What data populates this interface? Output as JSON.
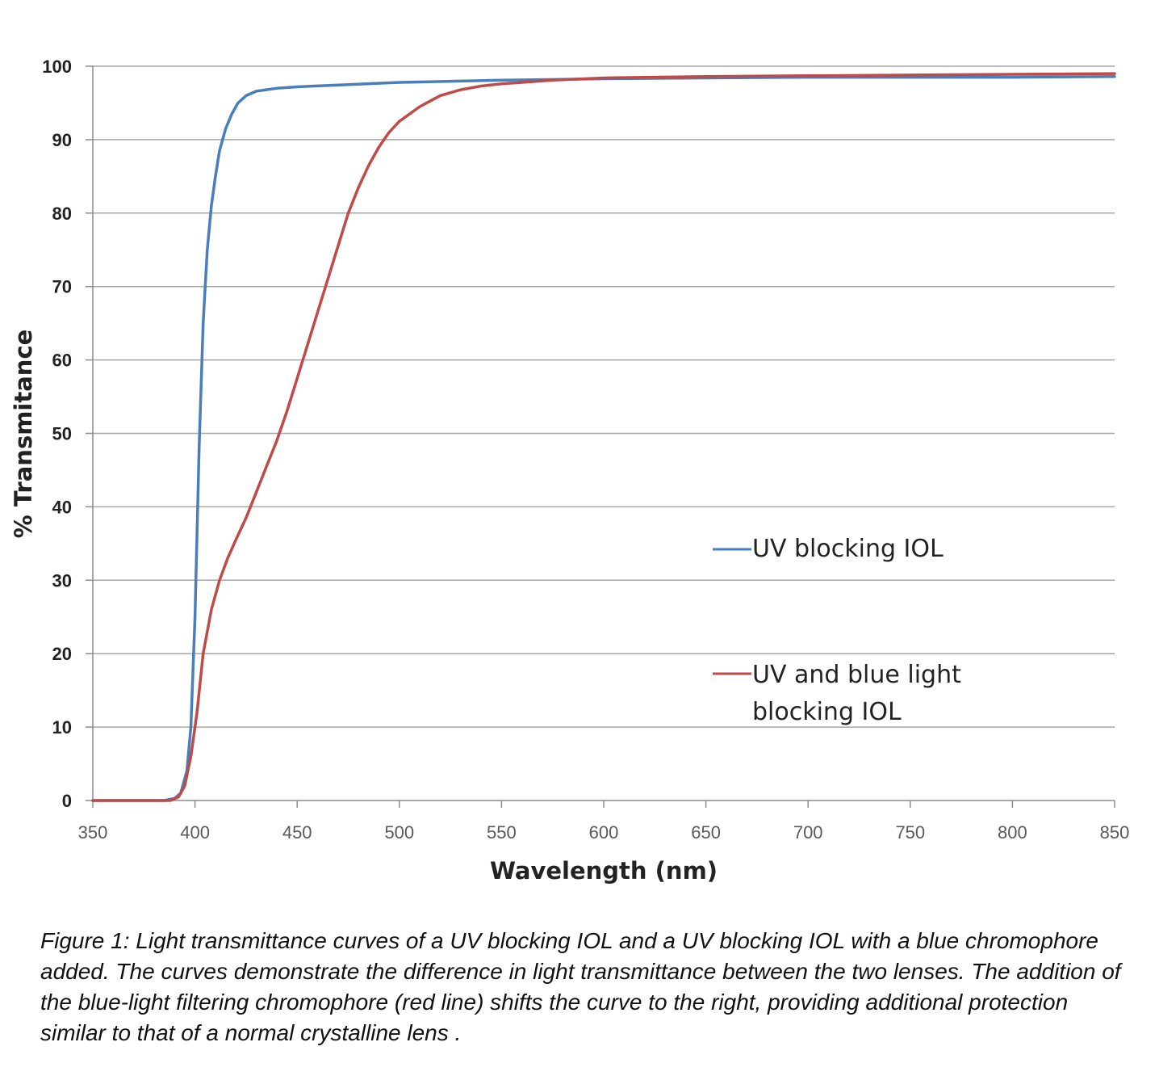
{
  "chart_data": {
    "type": "line",
    "xlabel": "Wavelength (nm)",
    "ylabel": "% Transmitance",
    "xlim": [
      350,
      850
    ],
    "ylim": [
      0,
      100
    ],
    "x_ticks": [
      "350",
      "400",
      "450",
      "500",
      "550",
      "600",
      "650",
      "700",
      "750",
      "800",
      "850"
    ],
    "y_ticks": [
      "0",
      "10",
      "20",
      "30",
      "40",
      "50",
      "60",
      "70",
      "80",
      "90",
      "100"
    ],
    "grid": "horizontal",
    "legend_position": "right, inside plot",
    "series": [
      {
        "name": "UV blocking IOL",
        "color": "#4a7ebb",
        "points": [
          [
            350,
            0
          ],
          [
            385,
            0
          ],
          [
            390,
            0.3
          ],
          [
            393,
            1
          ],
          [
            396,
            4
          ],
          [
            398,
            10
          ],
          [
            400,
            25
          ],
          [
            402,
            48
          ],
          [
            404,
            65
          ],
          [
            406,
            75
          ],
          [
            408,
            81
          ],
          [
            410,
            85
          ],
          [
            412,
            88.5
          ],
          [
            415,
            91.5
          ],
          [
            418,
            93.5
          ],
          [
            421,
            95
          ],
          [
            425,
            96
          ],
          [
            430,
            96.6
          ],
          [
            440,
            97
          ],
          [
            450,
            97.2
          ],
          [
            475,
            97.5
          ],
          [
            500,
            97.8
          ],
          [
            550,
            98.1
          ],
          [
            600,
            98.3
          ],
          [
            650,
            98.4
          ],
          [
            700,
            98.5
          ],
          [
            750,
            98.5
          ],
          [
            800,
            98.5
          ],
          [
            850,
            98.6
          ]
        ]
      },
      {
        "name": "UV and blue light blocking IOL",
        "color": "#be4b48",
        "points": [
          [
            350,
            0
          ],
          [
            388,
            0
          ],
          [
            392,
            0.5
          ],
          [
            395,
            2
          ],
          [
            398,
            6
          ],
          [
            401,
            12
          ],
          [
            404,
            20
          ],
          [
            408,
            26
          ],
          [
            412,
            30
          ],
          [
            416,
            33
          ],
          [
            420,
            35.5
          ],
          [
            425,
            38.5
          ],
          [
            430,
            42
          ],
          [
            435,
            45.5
          ],
          [
            440,
            49
          ],
          [
            445,
            53
          ],
          [
            450,
            57.5
          ],
          [
            455,
            62
          ],
          [
            460,
            66.5
          ],
          [
            465,
            71
          ],
          [
            470,
            75.5
          ],
          [
            475,
            80
          ],
          [
            480,
            83.5
          ],
          [
            485,
            86.5
          ],
          [
            490,
            89
          ],
          [
            495,
            91
          ],
          [
            500,
            92.5
          ],
          [
            510,
            94.5
          ],
          [
            520,
            96
          ],
          [
            530,
            96.8
          ],
          [
            540,
            97.3
          ],
          [
            550,
            97.6
          ],
          [
            575,
            98.1
          ],
          [
            600,
            98.4
          ],
          [
            650,
            98.6
          ],
          [
            700,
            98.7
          ],
          [
            750,
            98.8
          ],
          [
            800,
            98.9
          ],
          [
            850,
            99
          ]
        ]
      }
    ],
    "legend": [
      "UV blocking IOL",
      "UV and blue light",
      "blocking IOL"
    ]
  },
  "caption": "Figure 1: Light transmittance curves of a UV blocking IOL and a UV blocking IOL with a blue chromophore added. The curves demonstrate the difference in light transmittance between the two lenses. The addition of the blue-light filtering chromophore (red line) shifts the curve to the right, providing additional protection similar to that of a normal crystalline lens ."
}
